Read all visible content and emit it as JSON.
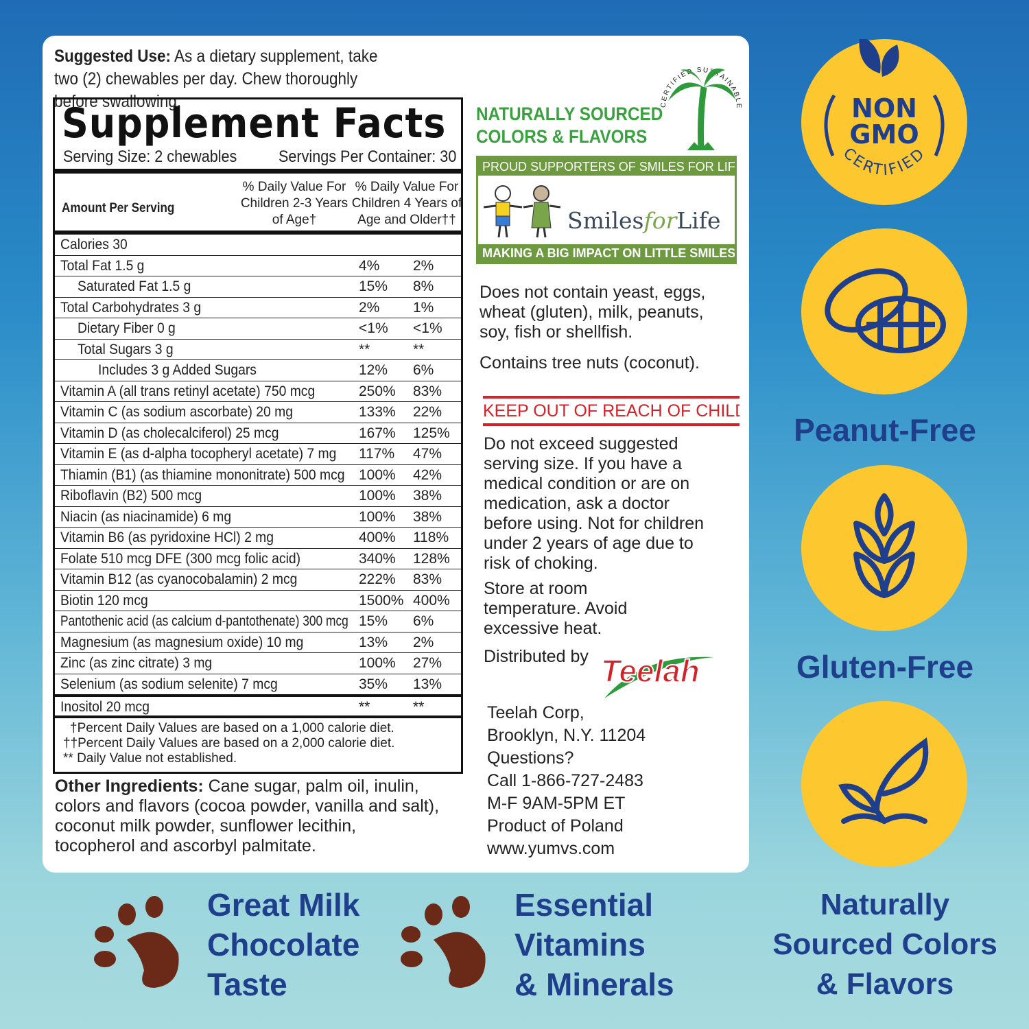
{
  "suggested_use": {
    "label": "Suggested Use:",
    "text": " As a dietary supplement, take two (2) chewables per day. Chew thoroughly before swallowing."
  },
  "facts": {
    "title": "Supplement Facts",
    "serving_size": "Serving Size: 2 chewables",
    "servings_per_container": "Servings Per Container: 30",
    "amount_header": "Amount Per Serving",
    "col1_header": "% Daily Value For Children 2-3 Years of Age†",
    "col2_header": "% Daily Value For Children 4 Years of Age and Older††",
    "rows": [
      {
        "name": "Calories 30",
        "a": "",
        "b": "",
        "indent": 0
      },
      {
        "name": "Total Fat  1.5 g",
        "a": "4%",
        "b": "2%",
        "indent": 0
      },
      {
        "name": "Saturated Fat 1.5 g",
        "a": "15%",
        "b": "8%",
        "indent": 1
      },
      {
        "name": "Total Carbohydrates 3 g",
        "a": "2%",
        "b": "1%",
        "indent": 0
      },
      {
        "name": "Dietary Fiber 0 g",
        "a": "<1%",
        "b": "<1%",
        "indent": 1
      },
      {
        "name": "Total Sugars 3 g",
        "a": "**",
        "b": "**",
        "indent": 1
      },
      {
        "name": "Includes 3 g Added Sugars",
        "a": "12%",
        "b": "6%",
        "indent": 2
      },
      {
        "name": "Vitamin A (all trans retinyl acetate) 750 mcg",
        "a": "250%",
        "b": "83%",
        "indent": 0
      },
      {
        "name": "Vitamin C (as sodium ascorbate) 20 mg",
        "a": "133%",
        "b": "22%",
        "indent": 0
      },
      {
        "name": "Vitamin D (as cholecalciferol) 25 mcg",
        "a": "167%",
        "b": "125%",
        "indent": 0
      },
      {
        "name": "Vitamin E (as d-alpha tocopheryl acetate) 7 mg",
        "a": "117%",
        "b": "47%",
        "indent": 0
      },
      {
        "name": "Thiamin (B1) (as thiamine mononitrate) 500 mcg",
        "a": "100%",
        "b": "42%",
        "indent": 0
      },
      {
        "name": "Riboflavin (B2) 500 mcg",
        "a": "100%",
        "b": "38%",
        "indent": 0
      },
      {
        "name": "Niacin (as niacinamide) 6 mg",
        "a": "100%",
        "b": "38%",
        "indent": 0
      },
      {
        "name": "Vitamin B6 (as pyridoxine HCl) 2 mg",
        "a": "400%",
        "b": "118%",
        "indent": 0
      },
      {
        "name": "Folate 510 mcg DFE (300 mcg folic acid)",
        "a": "340%",
        "b": "128%",
        "indent": 0
      },
      {
        "name": "Vitamin B12 (as cyanocobalamin) 2 mcg",
        "a": "222%",
        "b": "83%",
        "indent": 0
      },
      {
        "name": "Biotin 120 mcg",
        "a": "1500%",
        "b": "400%",
        "indent": 0
      },
      {
        "name": "Pantothenic acid (as calcium d-pantothenate) 300 mcg",
        "a": "15%",
        "b": "6%",
        "indent": 0
      },
      {
        "name": "Magnesium (as magnesium oxide) 10 mg",
        "a": "13%",
        "b": "2%",
        "indent": 0
      },
      {
        "name": "Zinc (as zinc citrate) 3 mg",
        "a": "100%",
        "b": "27%",
        "indent": 0
      },
      {
        "name": "Selenium (as sodium selenite) 7 mcg",
        "a": "35%",
        "b": "13%",
        "indent": 0
      },
      {
        "name": "Inositol 20 mcg",
        "a": "**",
        "b": "**",
        "indent": 0
      }
    ],
    "footnotes": [
      "†Percent Daily Values are based on a 1,000 calorie diet.",
      "††Percent Daily Values are based on a 2,000 calorie diet.",
      "** Daily Value not established."
    ]
  },
  "other_ingredients": {
    "label": "Other Ingredients:",
    "text": " Cane sugar, palm oil, inulin, colors and flavors (cocoa powder, vanilla and salt), coconut milk powder, sunflower lecithin, tocopherol and ascorbyl palmitate."
  },
  "naturally_sourced": [
    "NATURALLY SOURCED",
    "COLORS & FLAVORS"
  ],
  "palm_logo": "CERTIFIED SUSTAINABLE PALM OIL",
  "smiles": {
    "top": "PROUD SUPPORTERS OF SMILES FOR LIFE",
    "logo_a": "Smiles",
    "logo_b": "for",
    "logo_c": "Life",
    "bottom": "MAKING A BIG IMPACT ON LITTLE SMILES"
  },
  "allergens": "Does not contain yeast, eggs, wheat (gluten), milk, peanuts, soy, fish or shellfish.",
  "tree_nuts": "Contains tree nuts (coconut).",
  "warning_title": "KEEP OUT OF REACH OF CHILDREN",
  "warning": "Do not exceed suggested serving size. If you have a medical condition or are on medication, ask a doctor before using. Not for children under 2 years of age due to risk of choking.",
  "storage": "Store at room temperature. Avoid excessive heat.",
  "distributed_by": "Distributed by",
  "brand_logo": "Teelah",
  "address": [
    "Teelah Corp,",
    "Brooklyn, N.Y. 11204",
    "Questions?",
    "Call 1-866-727-2483",
    "M-F 9AM-5PM ET",
    "Product of Poland",
    "www.yumvs.com"
  ],
  "badges": {
    "nongmo": [
      "NON",
      "GMO"
    ],
    "certified": "CERTIFIED",
    "peanut": "Peanut-Free",
    "gluten": "Gluten-Free",
    "natural": [
      "Naturally",
      "Sourced Colors",
      "& Flavors"
    ]
  },
  "features": [
    [
      "Great Milk",
      "Chocolate",
      "Taste"
    ],
    [
      "Essential",
      "Vitamins",
      "& Minerals"
    ]
  ],
  "colors": {
    "navy": "#1f3f8c",
    "yellow": "#fdc82f",
    "green": "#3aa13f",
    "red": "#d3232a",
    "paw": "#6b2a17"
  }
}
